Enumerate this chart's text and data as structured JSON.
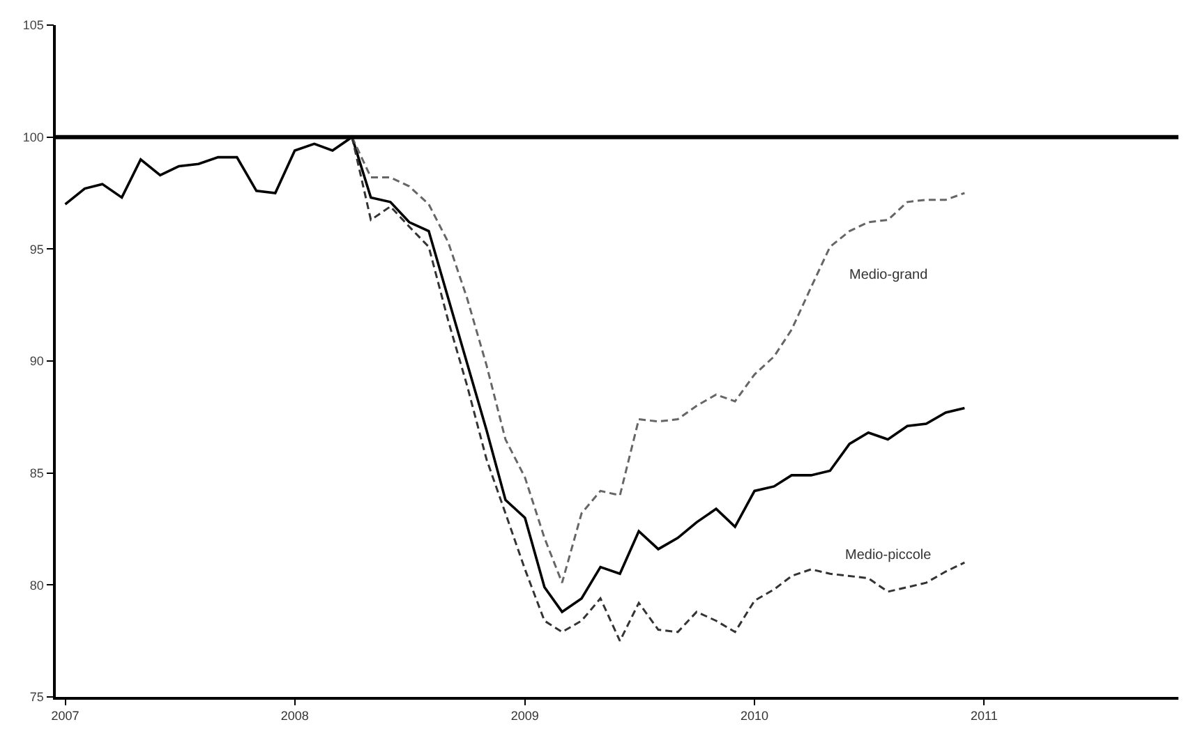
{
  "chart_data": {
    "type": "line",
    "x": [
      "2007-01",
      "2007-02",
      "2007-03",
      "2007-04",
      "2007-05",
      "2007-06",
      "2007-07",
      "2007-08",
      "2007-09",
      "2007-10",
      "2007-11",
      "2007-12",
      "2008-01",
      "2008-02",
      "2008-03",
      "2008-04",
      "2008-05",
      "2008-06",
      "2008-07",
      "2008-08",
      "2008-09",
      "2008-10",
      "2008-11",
      "2008-12",
      "2009-01",
      "2009-02",
      "2009-03",
      "2009-04",
      "2009-05",
      "2009-06",
      "2009-07",
      "2009-08",
      "2009-09",
      "2009-10",
      "2009-11",
      "2009-12",
      "2010-01",
      "2010-02",
      "2010-03",
      "2010-04",
      "2010-05",
      "2010-06",
      "2010-07",
      "2010-08",
      "2010-09",
      "2010-10",
      "2010-11",
      "2010-12"
    ],
    "series": [
      {
        "color": "#000000",
        "line_style": "solid",
        "values": [
          97.0,
          97.7,
          97.9,
          97.3,
          99.0,
          98.3,
          98.7,
          98.8,
          99.1,
          99.1,
          97.6,
          97.5,
          99.4,
          99.7,
          99.4,
          100.0,
          97.3,
          97.1,
          96.2,
          95.8,
          92.8,
          89.9,
          86.9,
          83.8,
          83.0,
          79.9,
          78.8,
          79.4,
          80.8,
          80.5,
          82.4,
          81.6,
          82.1,
          82.8,
          83.4,
          82.6,
          84.2,
          84.4,
          84.9,
          84.9,
          85.1,
          86.3,
          86.8,
          86.5,
          87.1,
          87.2,
          87.7,
          87.9
        ]
      },
      {
        "name": "Medio-grand",
        "color": "#666666",
        "line_style": "dashed",
        "values": [
          null,
          null,
          null,
          null,
          null,
          null,
          null,
          null,
          null,
          null,
          null,
          null,
          null,
          null,
          null,
          100.0,
          98.2,
          98.2,
          97.8,
          97.0,
          95.3,
          92.8,
          89.8,
          86.5,
          84.8,
          82.1,
          80.1,
          83.2,
          84.2,
          84.0,
          87.4,
          87.3,
          87.4,
          88.0,
          88.5,
          88.2,
          89.4,
          90.2,
          91.4,
          93.3,
          95.1,
          95.8,
          96.2,
          96.3,
          97.1,
          97.2,
          97.2,
          97.5
        ]
      },
      {
        "name": "Medio-piccole",
        "color": "#333333",
        "line_style": "dashed",
        "values": [
          null,
          null,
          null,
          null,
          null,
          null,
          null,
          null,
          null,
          null,
          null,
          null,
          null,
          null,
          null,
          100.0,
          96.3,
          96.9,
          96.0,
          95.1,
          91.8,
          88.9,
          85.6,
          83.2,
          80.7,
          78.4,
          77.9,
          78.4,
          79.4,
          77.5,
          79.2,
          78.0,
          77.9,
          78.8,
          78.4,
          77.9,
          79.3,
          79.8,
          80.4,
          80.7,
          80.5,
          80.4,
          80.3,
          79.7,
          79.9,
          80.1,
          80.6,
          81.0
        ]
      }
    ],
    "xlim": [
      "2006-12-17",
      "2011-11-06"
    ],
    "xticks": [
      "2007",
      "2008",
      "2009",
      "2010",
      "2011"
    ],
    "ylim": [
      75,
      105
    ],
    "yticks": [
      75,
      80,
      85,
      90,
      95,
      100,
      105
    ],
    "ref_lines": [
      {
        "axis": "y",
        "value": 100,
        "color": "#000000",
        "line_style": "solid"
      }
    ],
    "legend": false,
    "marker": "none"
  }
}
